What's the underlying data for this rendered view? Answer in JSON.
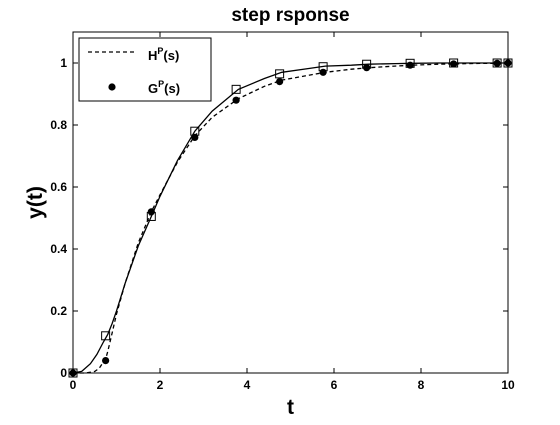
{
  "chart_data": {
    "type": "line",
    "title": "step rsponse",
    "xlabel": "t",
    "ylabel": "y(t)",
    "xlim": [
      0,
      10
    ],
    "ylim": [
      0,
      1.1
    ],
    "xticks": [
      0,
      2,
      4,
      6,
      8,
      10
    ],
    "yticks": [
      0,
      0.2,
      0.4,
      0.6,
      0.8,
      1
    ],
    "xtick_labels": [
      "0",
      "2",
      "4",
      "6",
      "8",
      "10"
    ],
    "ytick_labels": [
      "0",
      "0.2",
      "0.4",
      "0.6",
      "0.8",
      "1"
    ],
    "grid": false,
    "legend_position": "top-left",
    "legend": [
      {
        "base": "H",
        "sup": "P",
        "suffix": "(s)",
        "style": "dashed-line"
      },
      {
        "base": "G",
        "sup": "P",
        "suffix": "(s)",
        "style": "filled-circle"
      }
    ],
    "series": [
      {
        "name": "HP(s)",
        "style": "dashed",
        "color": "#000000",
        "x": [
          0,
          0.3,
          0.5,
          0.6,
          0.7,
          0.75,
          0.8,
          0.9,
          1.0,
          1.2,
          1.5,
          1.8,
          2.0,
          2.4,
          2.8,
          3.2,
          3.8,
          4.4,
          4.8,
          5.4,
          5.8,
          6.4,
          6.8,
          7.4,
          7.8,
          8.4,
          8.8,
          9.4,
          9.8,
          10
        ],
        "y": [
          0,
          0,
          0.005,
          0.015,
          0.035,
          0.045,
          0.07,
          0.13,
          0.19,
          0.29,
          0.42,
          0.52,
          0.575,
          0.68,
          0.765,
          0.825,
          0.885,
          0.925,
          0.945,
          0.96,
          0.97,
          0.98,
          0.985,
          0.99,
          0.993,
          0.996,
          0.997,
          0.999,
          0.999,
          1.0
        ]
      },
      {
        "name": "solid",
        "style": "solid",
        "color": "#000000",
        "x": [
          0,
          0.2,
          0.4,
          0.55,
          0.7,
          0.8,
          0.9,
          1.0,
          1.2,
          1.5,
          1.8,
          2.0,
          2.4,
          2.8,
          3.2,
          3.8,
          4.4,
          4.8,
          5.4,
          5.8,
          6.4,
          6.8,
          7.4,
          7.8,
          8.4,
          8.8,
          9.4,
          9.8,
          10
        ],
        "y": [
          0,
          0.005,
          0.03,
          0.06,
          0.1,
          0.125,
          0.16,
          0.2,
          0.29,
          0.41,
          0.505,
          0.57,
          0.685,
          0.78,
          0.845,
          0.915,
          0.95,
          0.97,
          0.982,
          0.99,
          0.993,
          0.996,
          0.998,
          0.999,
          1.0,
          1.0,
          1.0,
          1.0,
          1.0
        ]
      }
    ],
    "markers": [
      {
        "name": "square-markers",
        "shape": "open-square",
        "x": [
          0,
          0.75,
          1.8,
          2.8,
          3.75,
          4.75,
          5.75,
          6.75,
          7.75,
          8.75,
          9.75,
          10
        ],
        "y": [
          0,
          0.12,
          0.505,
          0.78,
          0.915,
          0.965,
          0.988,
          0.996,
          0.999,
          1.0,
          1.0,
          1.0
        ]
      },
      {
        "name": "circle-markers",
        "shape": "filled-circle",
        "x": [
          0,
          0.75,
          1.8,
          2.8,
          3.75,
          4.75,
          5.75,
          6.75,
          7.75,
          8.75,
          9.75,
          10
        ],
        "y": [
          0,
          0.04,
          0.52,
          0.76,
          0.88,
          0.94,
          0.97,
          0.985,
          0.993,
          0.997,
          0.999,
          1.0
        ]
      }
    ]
  }
}
